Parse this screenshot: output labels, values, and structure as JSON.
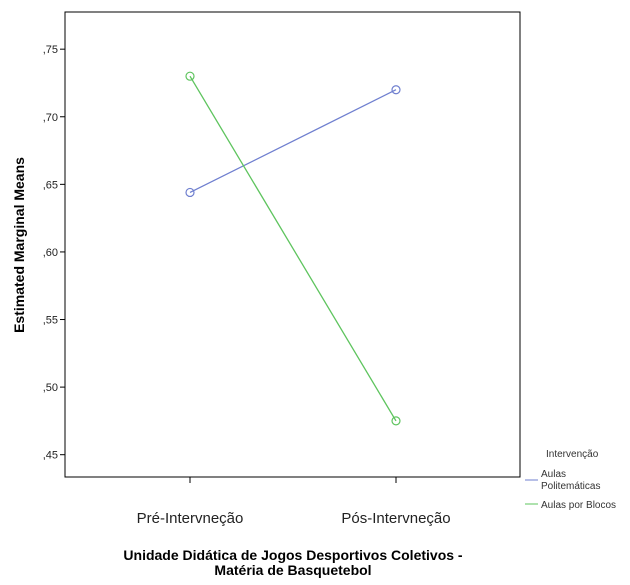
{
  "chart_data": {
    "type": "line",
    "categories": [
      "Pré-Intervneção",
      "Pós-Intervneção"
    ],
    "series": [
      {
        "name": "Aulas Politemáticas",
        "values": [
          0.644,
          0.72
        ],
        "color": "#6f7fcf"
      },
      {
        "name": "Aulas por Blocos",
        "values": [
          0.73,
          0.475
        ],
        "color": "#5ec45e"
      }
    ],
    "ylabel": "Estimated Marginal Means",
    "xlabel": [
      "Unidade Didática de Jogos Desportivos Coletivos -",
      "Matéria de Basquetebol"
    ],
    "yticks": [
      0.45,
      0.5,
      0.55,
      0.6,
      0.65,
      0.7,
      0.75
    ],
    "ytick_labels": [
      ",45",
      ",50",
      ",55",
      ",60",
      ",65",
      ",70",
      ",75"
    ],
    "ylim": [
      0.4335,
      0.7775
    ],
    "legend_title": "Intervenção",
    "legend_labels": [
      [
        "Aulas",
        "Politemáticas"
      ],
      [
        "Aulas por Blocos"
      ]
    ],
    "legend_position": "right",
    "grid": false
  }
}
